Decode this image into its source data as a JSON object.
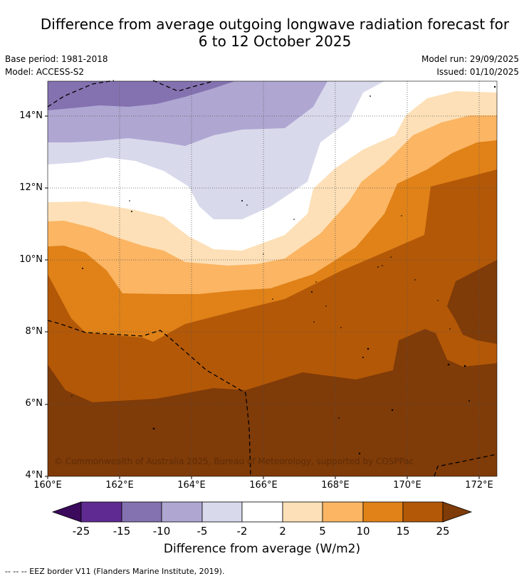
{
  "header": {
    "title_line1": "Difference from average outgoing longwave radiation forecast for",
    "title_line2": "6 to 12 October 2025",
    "base_period": "Base period: 1981-2018",
    "model": "Model: ACCESS-S2",
    "model_run": "Model run: 29/09/2025",
    "issued": "Issued: 01/10/2025"
  },
  "map": {
    "copyright": "© Commonwealth of Australia 2025, Bureau of Meteorology, supported by COSPPac",
    "lat_labels": [
      "14°N",
      "12°N",
      "10°N",
      "8°N",
      "6°N",
      "4°N"
    ],
    "lon_labels": [
      "160°E",
      "162°E",
      "164°E",
      "166°E",
      "168°E",
      "170°E",
      "172°E"
    ],
    "lon_range": [
      160,
      172.5
    ],
    "lat_range": [
      4,
      15
    ]
  },
  "colorbar": {
    "title": "Difference from average (W/m2)",
    "labels": [
      "-25",
      "-15",
      "-10",
      "-5",
      "-2",
      "2",
      "5",
      "10",
      "15",
      "25"
    ],
    "colors": {
      "lt_neg25": "#3b0a5c",
      "neg25_neg15": "#5f2a91",
      "neg15_neg10": "#8472b0",
      "neg10_neg5": "#afa7d2",
      "neg5_neg2": "#d9d9ec",
      "neg2_2": "#ffffff",
      "p2_5": "#fde0b7",
      "p5_10": "#fbb563",
      "p10_15": "#e08218",
      "p15_25": "#b35807",
      "gt_25": "#7f3b08"
    }
  },
  "footer": {
    "legend": "--  --  -- EEZ border V11 (Flanders Marine Institute, 2019)."
  }
}
